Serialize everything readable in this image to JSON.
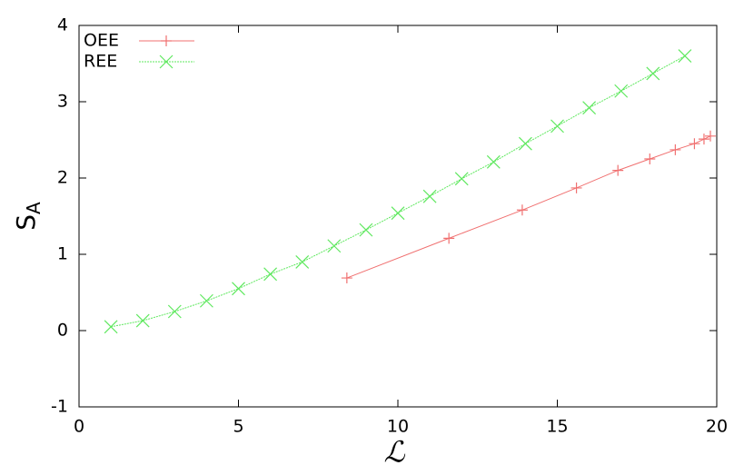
{
  "chart_data": {
    "type": "line",
    "x_label": "ℒ",
    "y_label": "S",
    "y_label_sub": "A",
    "xlim": [
      0,
      20
    ],
    "ylim": [
      -1,
      4
    ],
    "xticks": [
      0,
      5,
      10,
      15,
      20
    ],
    "yticks": [
      -1,
      0,
      1,
      2,
      3,
      4
    ],
    "legend": "top-left",
    "series": [
      {
        "name": "OEE",
        "color": "#f07070",
        "marker": "plus",
        "x": [
          8.4,
          11.6,
          13.9,
          15.6,
          16.9,
          17.9,
          18.7,
          19.3,
          19.6,
          19.8
        ],
        "values": [
          0.69,
          1.21,
          1.58,
          1.87,
          2.1,
          2.25,
          2.37,
          2.45,
          2.51,
          2.55
        ]
      },
      {
        "name": "REE",
        "color": "#5fe85f",
        "marker": "cross",
        "x": [
          1,
          2,
          3,
          4,
          5,
          6,
          7,
          8,
          9,
          10,
          11,
          12,
          13,
          14,
          15,
          16,
          17,
          18,
          19
        ],
        "values": [
          0.05,
          0.13,
          0.25,
          0.39,
          0.55,
          0.74,
          0.9,
          1.11,
          1.32,
          1.54,
          1.76,
          1.99,
          2.21,
          2.45,
          2.68,
          2.92,
          3.14,
          3.37,
          3.6
        ]
      }
    ]
  }
}
